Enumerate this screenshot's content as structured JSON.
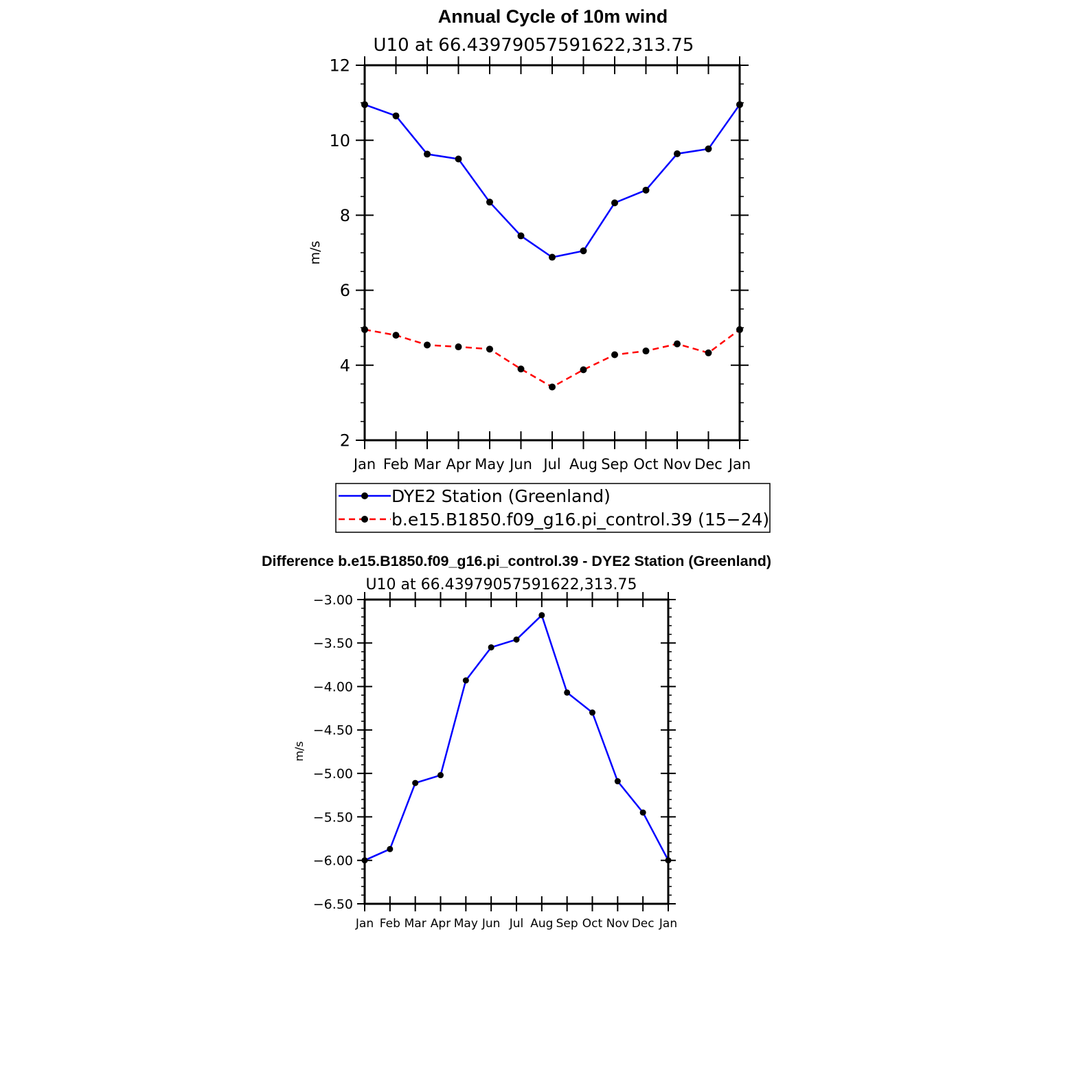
{
  "chart_data": [
    {
      "type": "line",
      "title": "Annual Cycle of 10m wind",
      "subtitle": "U10  at  66.43979057591622,313.75",
      "xlabel": "",
      "ylabel": "m/s",
      "categories": [
        "Jan",
        "Feb",
        "Mar",
        "Apr",
        "May",
        "Jun",
        "Jul",
        "Aug",
        "Sep",
        "Oct",
        "Nov",
        "Dec",
        "Jan"
      ],
      "ylim": [
        2,
        12
      ],
      "yticks": [
        2,
        4,
        6,
        8,
        10,
        12
      ],
      "ytick_labels": [
        "2",
        "4",
        "6",
        "8",
        "10",
        "12"
      ],
      "series": [
        {
          "name": "DYE2 Station (Greenland)",
          "color": "#0000ff",
          "dash": "solid",
          "values": [
            10.95,
            10.65,
            9.63,
            9.5,
            8.35,
            7.45,
            6.88,
            7.05,
            8.33,
            8.67,
            9.64,
            9.77,
            10.95
          ]
        },
        {
          "name": "b.e15.B1850.f09_g16.pi_control.39 (15−24)",
          "color": "#ff0000",
          "dash": "dashed",
          "values": [
            4.95,
            4.8,
            4.54,
            4.49,
            4.43,
            3.9,
            3.42,
            3.88,
            4.28,
            4.38,
            4.57,
            4.33,
            4.95
          ]
        }
      ],
      "legend": "below"
    },
    {
      "type": "line",
      "title": "Difference b.e15.B1850.f09_g16.pi_control.39 - DYE2 Station (Greenland)",
      "subtitle": "U10  at  66.43979057591622,313.75",
      "xlabel": "",
      "ylabel": "m/s",
      "categories": [
        "Jan",
        "Feb",
        "Mar",
        "Apr",
        "May",
        "Jun",
        "Jul",
        "Aug",
        "Sep",
        "Oct",
        "Nov",
        "Dec",
        "Jan"
      ],
      "ylim": [
        -6.5,
        -3.0
      ],
      "yticks": [
        -6.5,
        -6.0,
        -5.5,
        -5.0,
        -4.5,
        -4.0,
        -3.5,
        -3.0
      ],
      "ytick_labels": [
        "−6.50",
        "−6.00",
        "−5.50",
        "−5.00",
        "−4.50",
        "−4.00",
        "−3.50",
        "−3.00"
      ],
      "series": [
        {
          "name": "Difference",
          "color": "#0000ff",
          "dash": "solid",
          "values": [
            -6.0,
            -5.87,
            -5.11,
            -5.02,
            -3.93,
            -3.55,
            -3.46,
            -3.18,
            -4.07,
            -4.3,
            -5.09,
            -5.45,
            -6.0
          ]
        }
      ]
    }
  ]
}
